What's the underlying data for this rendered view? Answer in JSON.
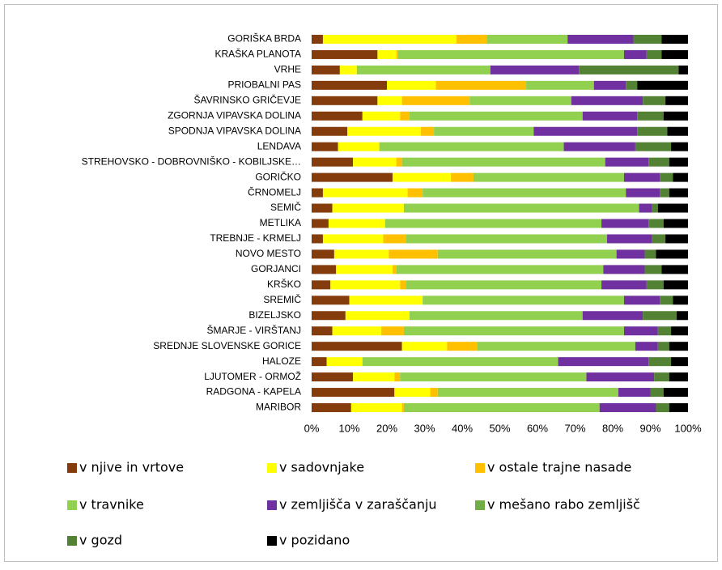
{
  "chart_data": {
    "type": "stacked_barh",
    "categories": [
      "GORIŠKA BRDA",
      "KRAŠKA PLANOTA",
      "VRHE",
      "PRIOBALNI PAS",
      "ŠAVRINSKO GRIČEVJE",
      "ZGORNJA VIPAVSKA DOLINA",
      "SPODNJA VIPAVSKA DOLINA",
      "LENDAVA",
      "STREHOVSKO - DOBROVNIŠKO - KOBILJSKE…",
      "GORIČKO",
      "ČRNOMELJ",
      "SEMIČ",
      "METLIKA",
      "TREBNJE - KRMELJ",
      "NOVO MESTO",
      "GORJANCI",
      "KRŠKO",
      "SREMIČ",
      "BIZELJSKO",
      "ŠMARJE - VIRŠTANJ",
      "SREDNJE SLOVENSKE GORICE",
      "HALOZE",
      "LJUTOMER - ORMOŽ",
      "RADGONA - KAPELA",
      "MARIBOR"
    ],
    "series": [
      {
        "name": "v njive in vrtove",
        "color": "#843c0c",
        "values": [
          3,
          17.5,
          7.5,
          20,
          17.5,
          13.5,
          9.5,
          7,
          11,
          21.5,
          3,
          5.5,
          4.5,
          3,
          6,
          6.5,
          5,
          10,
          9,
          5.5,
          24,
          4,
          11,
          22,
          10.5
        ]
      },
      {
        "name": "v sadovnjake",
        "color": "#ffff00",
        "values": [
          35.5,
          5,
          4.5,
          13,
          6.5,
          10,
          19.5,
          11,
          11.5,
          15.5,
          22.5,
          19,
          15,
          16,
          14.5,
          15,
          18.5,
          19.5,
          17,
          13,
          12,
          9.5,
          11,
          9.5,
          13.5
        ]
      },
      {
        "name": "v ostale trajne nasade",
        "color": "#ffc000",
        "values": [
          8,
          0.5,
          0,
          24,
          18,
          2.5,
          3.5,
          0,
          1.5,
          6,
          4,
          0,
          0,
          6,
          13,
          1,
          1.5,
          0,
          0,
          6,
          8,
          0,
          1.5,
          2,
          0.5
        ]
      },
      {
        "name": "v travnike",
        "color": "#92d050",
        "values": [
          21.5,
          60,
          35.5,
          18,
          27,
          46,
          26.5,
          49,
          54,
          40,
          54,
          62.5,
          57.5,
          53.5,
          47.5,
          55,
          52,
          53.5,
          46,
          58.5,
          42,
          52,
          49.5,
          48,
          52
        ]
      },
      {
        "name": "v zemljišča v zaraščanju",
        "color": "#7030a0",
        "values": [
          17.5,
          6,
          23.5,
          8.5,
          19,
          14.5,
          27.5,
          19,
          11.5,
          9.5,
          9,
          3.5,
          12.5,
          12,
          7.5,
          11,
          12,
          9.5,
          16,
          9,
          6,
          24,
          18,
          8.5,
          15
        ]
      },
      {
        "name": "v mešano rabo zemljišč",
        "color": "#70ad47",
        "values": [
          0,
          0,
          0,
          0,
          0,
          0,
          0,
          0,
          0,
          0,
          0,
          0,
          0,
          0,
          0,
          0,
          0,
          0,
          0,
          0,
          0,
          0,
          0,
          0,
          0
        ]
      },
      {
        "name": "v gozd",
        "color": "#548235",
        "values": [
          7.5,
          4,
          26.5,
          3,
          6,
          7,
          8,
          9.5,
          5.5,
          3.5,
          2.5,
          1.5,
          4,
          3.5,
          3,
          4.5,
          4.5,
          3.5,
          9,
          3.5,
          3,
          6,
          4,
          3.5,
          3.5
        ]
      },
      {
        "name": "v pozidano",
        "color": "#000000",
        "values": [
          7,
          7,
          2.5,
          13.5,
          6,
          6.5,
          5.5,
          4.5,
          5,
          4,
          5,
          8,
          6.5,
          6,
          8.5,
          7,
          6.5,
          4,
          3,
          4.5,
          5,
          4.5,
          5,
          6.5,
          5
        ]
      }
    ],
    "xlim": [
      0,
      100
    ],
    "xticks": [
      {
        "value": 0,
        "label": "0%"
      },
      {
        "value": 10,
        "label": "10%"
      },
      {
        "value": 20,
        "label": "20%"
      },
      {
        "value": 30,
        "label": "30%"
      },
      {
        "value": 40,
        "label": "40%"
      },
      {
        "value": 50,
        "label": "50%"
      },
      {
        "value": 60,
        "label": "60%"
      },
      {
        "value": 70,
        "label": "70%"
      },
      {
        "value": 80,
        "label": "80%"
      },
      {
        "value": 90,
        "label": "90%"
      },
      {
        "value": 100,
        "label": "100%"
      }
    ]
  }
}
